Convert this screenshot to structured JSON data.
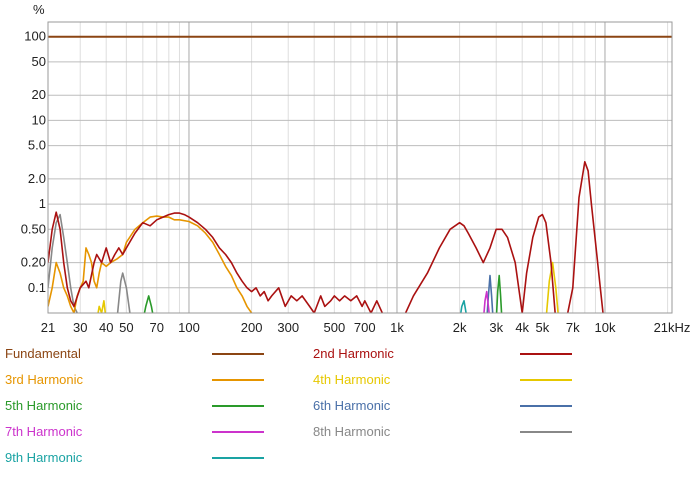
{
  "chart_data": {
    "type": "line",
    "title": "",
    "xlabel": "",
    "ylabel": "%",
    "xscale": "log",
    "yscale": "log",
    "xlim": [
      21,
      21000
    ],
    "ylim": [
      0.05,
      150
    ],
    "grid": true,
    "x_ticks": [
      {
        "value": 21,
        "label": "21"
      },
      {
        "value": 30,
        "label": "30"
      },
      {
        "value": 40,
        "label": "40"
      },
      {
        "value": 50,
        "label": "50"
      },
      {
        "value": 70,
        "label": "70"
      },
      {
        "value": 100,
        "label": "100"
      },
      {
        "value": 200,
        "label": "200"
      },
      {
        "value": 300,
        "label": "300"
      },
      {
        "value": 500,
        "label": "500"
      },
      {
        "value": 700,
        "label": "700"
      },
      {
        "value": 1000,
        "label": "1k"
      },
      {
        "value": 2000,
        "label": "2k"
      },
      {
        "value": 3000,
        "label": "3k"
      },
      {
        "value": 4000,
        "label": "4k"
      },
      {
        "value": 5000,
        "label": "5k"
      },
      {
        "value": 7000,
        "label": "7k"
      },
      {
        "value": 10000,
        "label": "10k"
      },
      {
        "value": 21000,
        "label": "21kHz"
      }
    ],
    "y_ticks": [
      {
        "value": 100,
        "label": "100"
      },
      {
        "value": 50,
        "label": "50"
      },
      {
        "value": 20,
        "label": "20"
      },
      {
        "value": 10,
        "label": "10"
      },
      {
        "value": 5,
        "label": "5.0"
      },
      {
        "value": 2,
        "label": "2.0"
      },
      {
        "value": 1,
        "label": "1"
      },
      {
        "value": 0.5,
        "label": "0.50"
      },
      {
        "value": 0.2,
        "label": "0.20"
      },
      {
        "value": 0.1,
        "label": "0.1"
      }
    ],
    "legend_position": "bottom",
    "series": [
      {
        "name": "Fundamental",
        "color": "#8b4513",
        "x": [
          21,
          21000
        ],
        "y": [
          100,
          100
        ]
      },
      {
        "name": "2nd Harmonic",
        "color": "#aa1111",
        "x": [
          21,
          22,
          23,
          24,
          25,
          26,
          27,
          28,
          30,
          32,
          33,
          35,
          36,
          38,
          40,
          42,
          44,
          46,
          48,
          50,
          55,
          60,
          65,
          70,
          75,
          80,
          85,
          90,
          95,
          100,
          110,
          120,
          130,
          140,
          150,
          160,
          170,
          180,
          190,
          200,
          210,
          220,
          230,
          240,
          250,
          270,
          290,
          310,
          330,
          350,
          380,
          400,
          430,
          450,
          480,
          500,
          530,
          560,
          600,
          640,
          680,
          700,
          750,
          800,
          850,
          900,
          950,
          1000,
          1100,
          1200,
          1400,
          1600,
          1800,
          2000,
          2100,
          2200,
          2400,
          2600,
          2800,
          3000,
          3200,
          3400,
          3700,
          4000,
          4200,
          4500,
          4800,
          5000,
          5200,
          5500,
          5800,
          6000,
          6500,
          7000,
          7500,
          8000,
          8300,
          8600,
          9000,
          9500,
          10000
        ],
        "y": [
          0.2,
          0.5,
          0.8,
          0.5,
          0.2,
          0.1,
          0.07,
          0.06,
          0.1,
          0.12,
          0.1,
          0.2,
          0.25,
          0.2,
          0.3,
          0.2,
          0.25,
          0.3,
          0.25,
          0.3,
          0.45,
          0.6,
          0.55,
          0.65,
          0.7,
          0.75,
          0.78,
          0.78,
          0.75,
          0.7,
          0.6,
          0.5,
          0.4,
          0.3,
          0.25,
          0.2,
          0.15,
          0.12,
          0.1,
          0.09,
          0.1,
          0.08,
          0.09,
          0.07,
          0.08,
          0.1,
          0.06,
          0.08,
          0.07,
          0.08,
          0.06,
          0.05,
          0.08,
          0.06,
          0.07,
          0.08,
          0.07,
          0.08,
          0.07,
          0.08,
          0.06,
          0.07,
          0.05,
          0.07,
          0.05,
          0.04,
          0.04,
          0.04,
          0.05,
          0.08,
          0.15,
          0.3,
          0.5,
          0.6,
          0.55,
          0.45,
          0.3,
          0.2,
          0.3,
          0.5,
          0.5,
          0.4,
          0.2,
          0.05,
          0.15,
          0.4,
          0.7,
          0.75,
          0.6,
          0.2,
          0.04,
          0.04,
          0.04,
          0.1,
          1.2,
          3.2,
          2.5,
          1.0,
          0.35,
          0.1,
          0.03
        ]
      },
      {
        "name": "3rd Harmonic",
        "color": "#e69500",
        "x": [
          21,
          22,
          23,
          24,
          25,
          26,
          27,
          28,
          29,
          30,
          31,
          32,
          33,
          34,
          35,
          36,
          37,
          38,
          40,
          42,
          45,
          48,
          50,
          55,
          60,
          65,
          70,
          75,
          80,
          85,
          90,
          100,
          110,
          120,
          130,
          140,
          150,
          160,
          170,
          180,
          190,
          200,
          210
        ],
        "y": [
          0.06,
          0.1,
          0.2,
          0.15,
          0.1,
          0.08,
          0.06,
          0.05,
          0.08,
          0.1,
          0.12,
          0.3,
          0.25,
          0.2,
          0.12,
          0.1,
          0.15,
          0.2,
          0.18,
          0.2,
          0.22,
          0.25,
          0.35,
          0.5,
          0.6,
          0.7,
          0.72,
          0.7,
          0.7,
          0.65,
          0.65,
          0.62,
          0.55,
          0.45,
          0.35,
          0.25,
          0.18,
          0.14,
          0.1,
          0.08,
          0.06,
          0.05,
          0.04
        ]
      },
      {
        "name": "4th Harmonic",
        "color": "#e6c800",
        "x": [
          36,
          37,
          38,
          39,
          40,
          5200,
          5400,
          5600,
          5800,
          6000
        ],
        "y": [
          0.04,
          0.06,
          0.05,
          0.07,
          0.04,
          0.04,
          0.12,
          0.2,
          0.1,
          0.04
        ]
      },
      {
        "name": "5th Harmonic",
        "color": "#2a9a2a",
        "x": [
          60,
          62,
          64,
          66,
          68,
          3000,
          3050,
          3100,
          3150,
          3200
        ],
        "y": [
          0.04,
          0.06,
          0.08,
          0.06,
          0.04,
          0.04,
          0.09,
          0.14,
          0.08,
          0.04
        ]
      },
      {
        "name": "6th Harmonic",
        "color": "#4a70a8",
        "x": [
          2700,
          2750,
          2800,
          2850,
          2900
        ],
        "y": [
          0.04,
          0.08,
          0.14,
          0.08,
          0.04
        ]
      },
      {
        "name": "7th Harmonic",
        "color": "#cc33cc",
        "x": [
          2600,
          2650,
          2700,
          2750,
          2800
        ],
        "y": [
          0.04,
          0.07,
          0.09,
          0.06,
          0.04
        ]
      },
      {
        "name": "8th Harmonic",
        "color": "#888888",
        "x": [
          21,
          22,
          23,
          24,
          25,
          26,
          27,
          28,
          29,
          30,
          45,
          47,
          48,
          50,
          52
        ],
        "y": [
          0.1,
          0.3,
          0.6,
          0.75,
          0.4,
          0.2,
          0.1,
          0.06,
          0.05,
          0.04,
          0.04,
          0.12,
          0.15,
          0.1,
          0.05
        ]
      },
      {
        "name": "9th Harmonic",
        "color": "#1aa3a3",
        "x": [
          2000,
          2050,
          2100,
          2150,
          2200
        ],
        "y": [
          0.04,
          0.06,
          0.07,
          0.05,
          0.04
        ]
      }
    ]
  }
}
